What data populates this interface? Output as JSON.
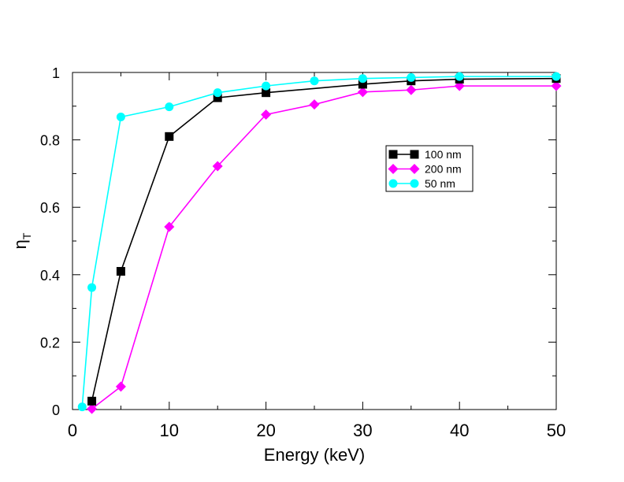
{
  "chart_data": {
    "type": "line",
    "title": "",
    "xlabel": "Energy (keV)",
    "ylabel_main": "η",
    "ylabel_sub": "T",
    "xlim": [
      0,
      50
    ],
    "ylim": [
      0,
      1
    ],
    "x_ticks": [
      0,
      10,
      20,
      30,
      40,
      50
    ],
    "x_tick_labels": [
      "0",
      "10",
      "20",
      "30",
      "40",
      "50"
    ],
    "x_minor_ticks": [
      5,
      15,
      25,
      35,
      45
    ],
    "y_ticks": [
      0,
      0.2,
      0.4,
      0.6,
      0.8,
      1
    ],
    "y_tick_labels": [
      "0",
      "0.2",
      "0.4",
      "0.6",
      "0.8",
      "1"
    ],
    "y_minor_ticks": [
      0.1,
      0.3,
      0.5,
      0.7,
      0.9
    ],
    "grid": false,
    "legend_position": "upper-right-inside",
    "series": [
      {
        "name": "100 nm",
        "color": "#000000",
        "marker": "square",
        "x": [
          2,
          5,
          10,
          15,
          20,
          30,
          35,
          40,
          50
        ],
        "y": [
          0.025,
          0.41,
          0.81,
          0.925,
          0.94,
          0.965,
          0.975,
          0.98,
          0.982
        ]
      },
      {
        "name": "200 nm",
        "color": "#ff00ff",
        "marker": "diamond",
        "x": [
          2,
          5,
          10,
          15,
          20,
          25,
          30,
          35,
          40,
          50
        ],
        "y": [
          0.002,
          0.068,
          0.542,
          0.722,
          0.875,
          0.905,
          0.942,
          0.948,
          0.96,
          0.96
        ]
      },
      {
        "name": "50 nm",
        "color": "#00ffff",
        "marker": "circle",
        "x": [
          1,
          2,
          5,
          10,
          15,
          20,
          25,
          30,
          35,
          40,
          50
        ],
        "y": [
          0.008,
          0.362,
          0.868,
          0.898,
          0.94,
          0.96,
          0.975,
          0.982,
          0.985,
          0.988,
          0.988
        ]
      }
    ]
  }
}
